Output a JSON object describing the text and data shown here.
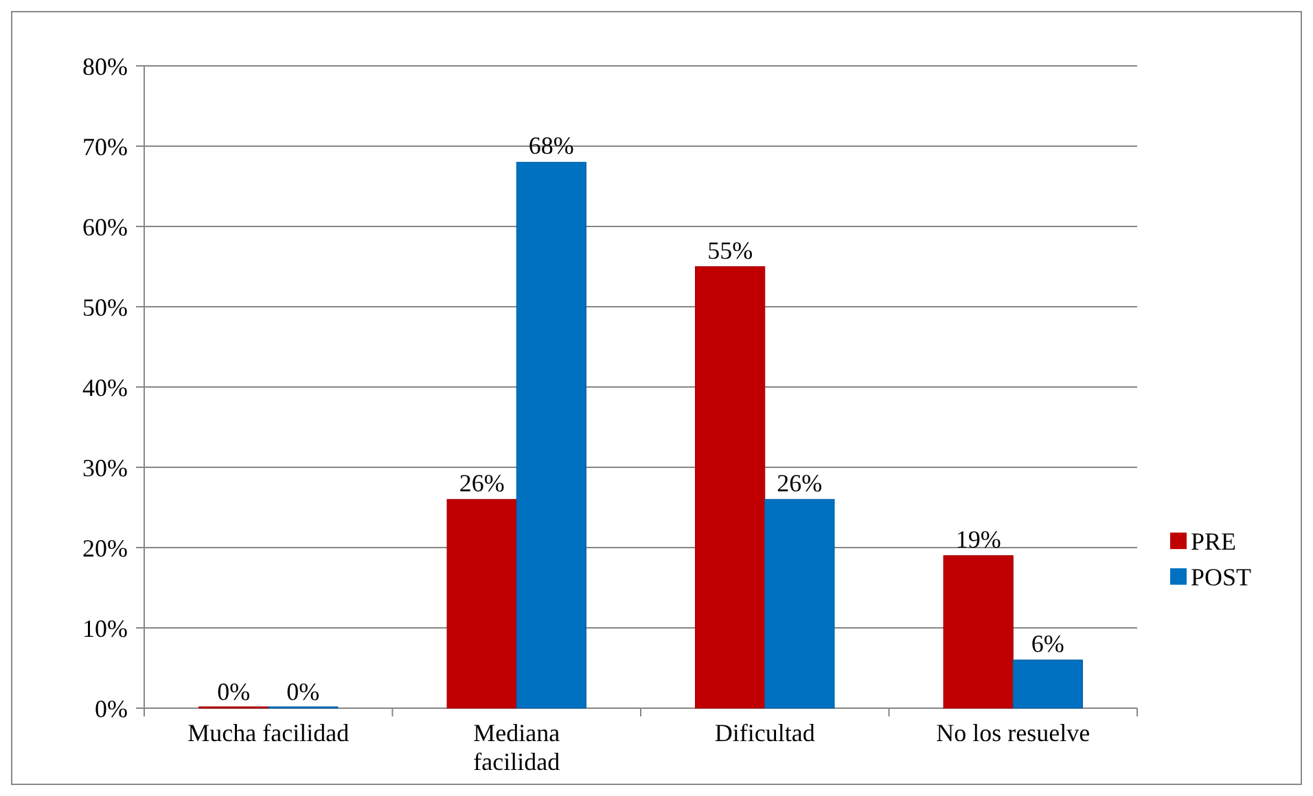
{
  "chart_data": {
    "type": "bar",
    "categories": [
      "Mucha facilidad",
      "Mediana facilidad",
      "Dificultad",
      "No los resuelve"
    ],
    "series": [
      {
        "name": "PRE",
        "color": "#c00000",
        "values": [
          0,
          26,
          55,
          19
        ],
        "value_labels": [
          "0%",
          "26%",
          "55%",
          "19%"
        ]
      },
      {
        "name": "POST",
        "color": "#0070c0",
        "values": [
          0,
          68,
          26,
          6
        ],
        "value_labels": [
          "0%",
          "68%",
          "26%",
          "6%"
        ]
      }
    ],
    "ylim": [
      0,
      80
    ],
    "yticks": [
      {
        "value": 0,
        "label": "0%"
      },
      {
        "value": 10,
        "label": "10%"
      },
      {
        "value": 20,
        "label": "20%"
      },
      {
        "value": 30,
        "label": "30%"
      },
      {
        "value": 40,
        "label": "40%"
      },
      {
        "value": 50,
        "label": "50%"
      },
      {
        "value": 60,
        "label": "60%"
      },
      {
        "value": 70,
        "label": "70%"
      },
      {
        "value": 80,
        "label": "80%"
      }
    ],
    "grid": "y",
    "legend": "right"
  }
}
